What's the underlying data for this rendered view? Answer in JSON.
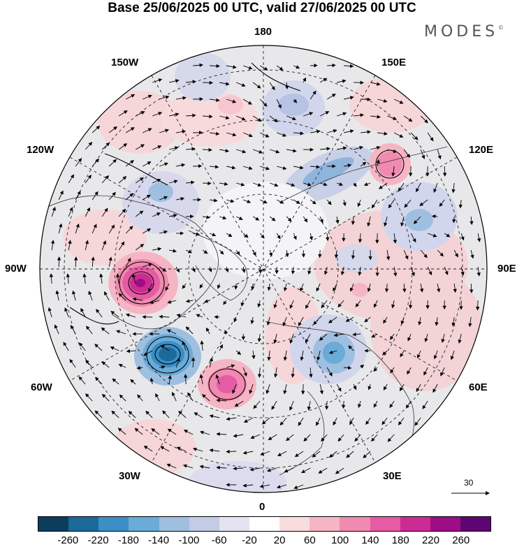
{
  "title": "Base 25/06/2025 00 UTC, valid 27/06/2025 00 UTC",
  "logo": {
    "text": "MODES",
    "mark": "©"
  },
  "map": {
    "projection": "north-polar-stereographic",
    "longitude_labels": {
      "top": "180",
      "bottom": "0",
      "left": "90W",
      "right": "90E",
      "upper_left_outer": "150W",
      "upper_left_inner": "120W",
      "upper_right_outer": "150E",
      "upper_right_inner": "120E",
      "lower_left_inner": "60W",
      "lower_left_outer": "30W",
      "lower_right_inner": "60E",
      "lower_right_outer": "30E"
    },
    "wind_reference": {
      "value": "30",
      "icon": "arrow-right-icon"
    }
  },
  "colorbar": {
    "colors": [
      "#0d3d5c",
      "#1c6a9a",
      "#3b8ec6",
      "#6aabd8",
      "#9fbfe0",
      "#c3cbe6",
      "#e5e3f1",
      "#ffffff",
      "#f9dcdd",
      "#f6b5c4",
      "#f08ab0",
      "#e55ba4",
      "#cc2b94",
      "#9c0d86",
      "#5f0474"
    ],
    "tick_labels": [
      "-260",
      "-220",
      "-180",
      "-140",
      "-100",
      "-60",
      "-20",
      "20",
      "60",
      "100",
      "140",
      "180",
      "220",
      "260"
    ]
  }
}
